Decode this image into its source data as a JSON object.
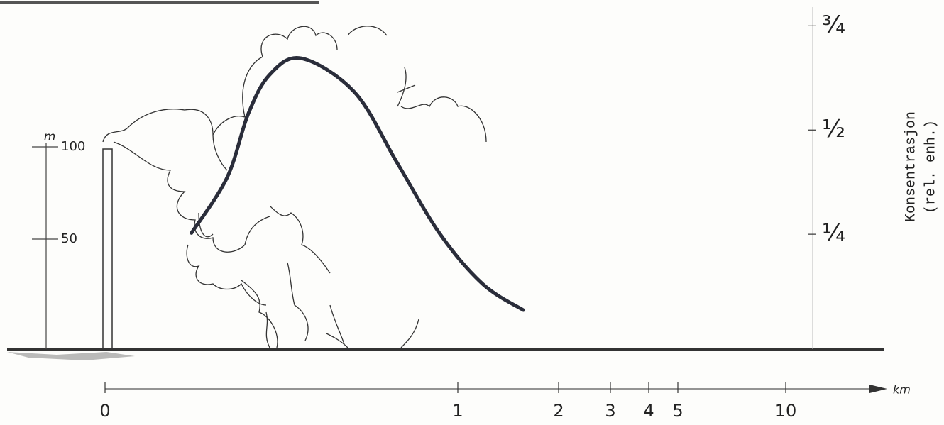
{
  "chart_data": {
    "type": "line",
    "x": [
      0.245,
      0.346,
      0.406,
      0.467,
      0.557,
      0.708,
      0.829,
      0.95,
      1.25,
      1.65
    ],
    "values": [
      0.253,
      0.386,
      0.539,
      0.633,
      0.672,
      0.59,
      0.42,
      0.25,
      0.13,
      0.068
    ],
    "color": "#2a2d3a",
    "xlabel": "km",
    "xticks": [
      0,
      1,
      2,
      3,
      4,
      5,
      10
    ],
    "ylabel": [
      "Konsentrasjon",
      "(rel. enh.)"
    ],
    "ylim": [
      0,
      0.8
    ],
    "yticks": [
      {
        "value": 0.25,
        "label": "¼"
      },
      {
        "value": 0.5,
        "label": "½"
      },
      {
        "value": 0.75,
        "label": "¾"
      }
    ],
    "height_axis": {
      "label": "m",
      "ticks": [
        50,
        100
      ]
    }
  }
}
